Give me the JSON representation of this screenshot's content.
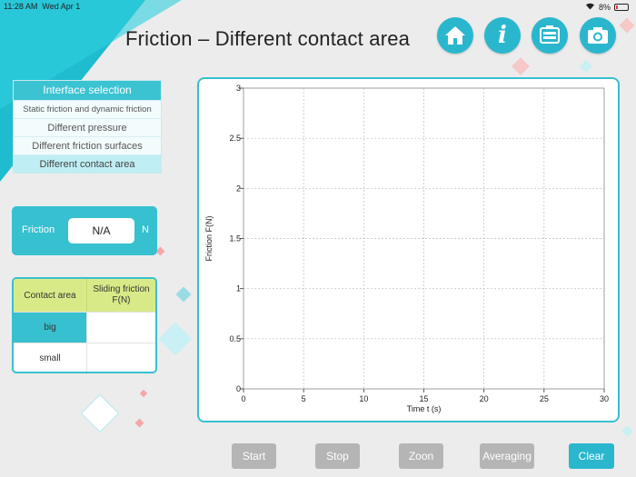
{
  "status": {
    "time": "11:28 AM",
    "date": "Wed Apr 1",
    "battery": "8%"
  },
  "title": "Friction – Different contact area",
  "icons": {
    "home": "home-icon",
    "info": "info-icon",
    "record": "record-icon",
    "camera": "camera-icon"
  },
  "menu": {
    "header": "Interface selection",
    "items": [
      {
        "label": "Static friction and dynamic friction"
      },
      {
        "label": "Different pressure"
      },
      {
        "label": "Different friction surfaces"
      },
      {
        "label": "Different contact area"
      }
    ]
  },
  "friction": {
    "label": "Friction",
    "value": "N/A",
    "unit": "N"
  },
  "table": {
    "headers": [
      "Contact area",
      "Sliding friction F(N)"
    ],
    "rows": [
      {
        "area": "big",
        "value": ""
      },
      {
        "area": "small",
        "value": ""
      }
    ]
  },
  "chart_data": {
    "type": "line",
    "xlabel": "Time t (s)",
    "ylabel": "Friction F(N)",
    "xlim": [
      0,
      30
    ],
    "ylim": [
      0,
      3
    ],
    "xticks": [
      0,
      5,
      10,
      15,
      20,
      25,
      30
    ],
    "yticks": [
      0,
      0.5,
      1,
      1.5,
      2,
      2.5,
      3
    ],
    "grid": true,
    "series": []
  },
  "buttons": {
    "start": "Start",
    "stop": "Stop",
    "zoom": "Zoon",
    "averaging": "Averaging",
    "clear": "Clear"
  },
  "colors": {
    "accent": "#37c0cf",
    "button_disabled": "#b5b5b5",
    "table_header": "#d8ea88"
  }
}
